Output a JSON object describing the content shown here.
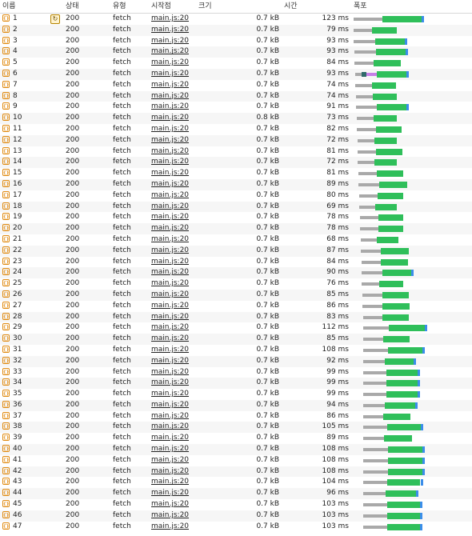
{
  "columns": {
    "name": "이름",
    "status": "상태",
    "type": "유형",
    "initiator": "시작점",
    "size": "크기",
    "time": "시간",
    "waterfall": "폭포"
  },
  "colors": {
    "wait": "#a9a9a9",
    "receive": "#2fbf5a",
    "content": "#3b8dea",
    "accent": "#e08a10"
  },
  "rows": [
    {
      "name": "1",
      "status": "200",
      "type": "fetch",
      "initiator": "main.js:20",
      "size": "0.7 kB",
      "time": "123 ms"
    },
    {
      "name": "2",
      "status": "200",
      "type": "fetch",
      "initiator": "main.js:20",
      "size": "0.7 kB",
      "time": "79 ms"
    },
    {
      "name": "3",
      "status": "200",
      "type": "fetch",
      "initiator": "main.js:20",
      "size": "0.7 kB",
      "time": "93 ms"
    },
    {
      "name": "4",
      "status": "200",
      "type": "fetch",
      "initiator": "main.js:20",
      "size": "0.7 kB",
      "time": "93 ms"
    },
    {
      "name": "5",
      "status": "200",
      "type": "fetch",
      "initiator": "main.js:20",
      "size": "0.7 kB",
      "time": "84 ms"
    },
    {
      "name": "6",
      "status": "200",
      "type": "fetch",
      "initiator": "main.js:20",
      "size": "0.7 kB",
      "time": "93 ms"
    },
    {
      "name": "7",
      "status": "200",
      "type": "fetch",
      "initiator": "main.js:20",
      "size": "0.7 kB",
      "time": "74 ms"
    },
    {
      "name": "8",
      "status": "200",
      "type": "fetch",
      "initiator": "main.js:20",
      "size": "0.7 kB",
      "time": "74 ms"
    },
    {
      "name": "9",
      "status": "200",
      "type": "fetch",
      "initiator": "main.js:20",
      "size": "0.7 kB",
      "time": "91 ms"
    },
    {
      "name": "10",
      "status": "200",
      "type": "fetch",
      "initiator": "main.js:20",
      "size": "0.8 kB",
      "time": "73 ms"
    },
    {
      "name": "11",
      "status": "200",
      "type": "fetch",
      "initiator": "main.js:20",
      "size": "0.7 kB",
      "time": "82 ms"
    },
    {
      "name": "12",
      "status": "200",
      "type": "fetch",
      "initiator": "main.js:20",
      "size": "0.7 kB",
      "time": "72 ms"
    },
    {
      "name": "13",
      "status": "200",
      "type": "fetch",
      "initiator": "main.js:20",
      "size": "0.7 kB",
      "time": "81 ms"
    },
    {
      "name": "14",
      "status": "200",
      "type": "fetch",
      "initiator": "main.js:20",
      "size": "0.7 kB",
      "time": "72 ms"
    },
    {
      "name": "15",
      "status": "200",
      "type": "fetch",
      "initiator": "main.js:20",
      "size": "0.7 kB",
      "time": "81 ms"
    },
    {
      "name": "16",
      "status": "200",
      "type": "fetch",
      "initiator": "main.js:20",
      "size": "0.7 kB",
      "time": "89 ms"
    },
    {
      "name": "17",
      "status": "200",
      "type": "fetch",
      "initiator": "main.js:20",
      "size": "0.7 kB",
      "time": "80 ms"
    },
    {
      "name": "18",
      "status": "200",
      "type": "fetch",
      "initiator": "main.js:20",
      "size": "0.7 kB",
      "time": "69 ms"
    },
    {
      "name": "19",
      "status": "200",
      "type": "fetch",
      "initiator": "main.js:20",
      "size": "0.7 kB",
      "time": "78 ms"
    },
    {
      "name": "20",
      "status": "200",
      "type": "fetch",
      "initiator": "main.js:20",
      "size": "0.7 kB",
      "time": "78 ms"
    },
    {
      "name": "21",
      "status": "200",
      "type": "fetch",
      "initiator": "main.js:20",
      "size": "0.7 kB",
      "time": "68 ms"
    },
    {
      "name": "22",
      "status": "200",
      "type": "fetch",
      "initiator": "main.js:20",
      "size": "0.7 kB",
      "time": "87 ms"
    },
    {
      "name": "23",
      "status": "200",
      "type": "fetch",
      "initiator": "main.js:20",
      "size": "0.7 kB",
      "time": "84 ms"
    },
    {
      "name": "24",
      "status": "200",
      "type": "fetch",
      "initiator": "main.js:20",
      "size": "0.7 kB",
      "time": "90 ms"
    },
    {
      "name": "25",
      "status": "200",
      "type": "fetch",
      "initiator": "main.js:20",
      "size": "0.7 kB",
      "time": "76 ms"
    },
    {
      "name": "26",
      "status": "200",
      "type": "fetch",
      "initiator": "main.js:20",
      "size": "0.7 kB",
      "time": "85 ms"
    },
    {
      "name": "27",
      "status": "200",
      "type": "fetch",
      "initiator": "main.js:20",
      "size": "0.7 kB",
      "time": "86 ms"
    },
    {
      "name": "28",
      "status": "200",
      "type": "fetch",
      "initiator": "main.js:20",
      "size": "0.7 kB",
      "time": "83 ms"
    },
    {
      "name": "29",
      "status": "200",
      "type": "fetch",
      "initiator": "main.js:20",
      "size": "0.7 kB",
      "time": "112 ms"
    },
    {
      "name": "30",
      "status": "200",
      "type": "fetch",
      "initiator": "main.js:20",
      "size": "0.7 kB",
      "time": "85 ms"
    },
    {
      "name": "31",
      "status": "200",
      "type": "fetch",
      "initiator": "main.js:20",
      "size": "0.7 kB",
      "time": "108 ms"
    },
    {
      "name": "32",
      "status": "200",
      "type": "fetch",
      "initiator": "main.js:20",
      "size": "0.7 kB",
      "time": "92 ms"
    },
    {
      "name": "33",
      "status": "200",
      "type": "fetch",
      "initiator": "main.js:20",
      "size": "0.7 kB",
      "time": "99 ms"
    },
    {
      "name": "34",
      "status": "200",
      "type": "fetch",
      "initiator": "main.js:20",
      "size": "0.7 kB",
      "time": "99 ms"
    },
    {
      "name": "35",
      "status": "200",
      "type": "fetch",
      "initiator": "main.js:20",
      "size": "0.7 kB",
      "time": "99 ms"
    },
    {
      "name": "36",
      "status": "200",
      "type": "fetch",
      "initiator": "main.js:20",
      "size": "0.7 kB",
      "time": "94 ms"
    },
    {
      "name": "37",
      "status": "200",
      "type": "fetch",
      "initiator": "main.js:20",
      "size": "0.7 kB",
      "time": "86 ms"
    },
    {
      "name": "38",
      "status": "200",
      "type": "fetch",
      "initiator": "main.js:20",
      "size": "0.7 kB",
      "time": "105 ms"
    },
    {
      "name": "39",
      "status": "200",
      "type": "fetch",
      "initiator": "main.js:20",
      "size": "0.7 kB",
      "time": "89 ms"
    },
    {
      "name": "40",
      "status": "200",
      "type": "fetch",
      "initiator": "main.js:20",
      "size": "0.7 kB",
      "time": "108 ms"
    },
    {
      "name": "41",
      "status": "200",
      "type": "fetch",
      "initiator": "main.js:20",
      "size": "0.7 kB",
      "time": "108 ms"
    },
    {
      "name": "42",
      "status": "200",
      "type": "fetch",
      "initiator": "main.js:20",
      "size": "0.7 kB",
      "time": "108 ms"
    },
    {
      "name": "43",
      "status": "200",
      "type": "fetch",
      "initiator": "main.js:20",
      "size": "0.7 kB",
      "time": "104 ms"
    },
    {
      "name": "44",
      "status": "200",
      "type": "fetch",
      "initiator": "main.js:20",
      "size": "0.7 kB",
      "time": "96 ms"
    },
    {
      "name": "45",
      "status": "200",
      "type": "fetch",
      "initiator": "main.js:20",
      "size": "0.7 kB",
      "time": "103 ms"
    },
    {
      "name": "46",
      "status": "200",
      "type": "fetch",
      "initiator": "main.js:20",
      "size": "0.7 kB",
      "time": "103 ms"
    },
    {
      "name": "47",
      "status": "200",
      "type": "fetch",
      "initiator": "main.js:20",
      "size": "0.7 kB",
      "time": "103 ms"
    }
  ]
}
